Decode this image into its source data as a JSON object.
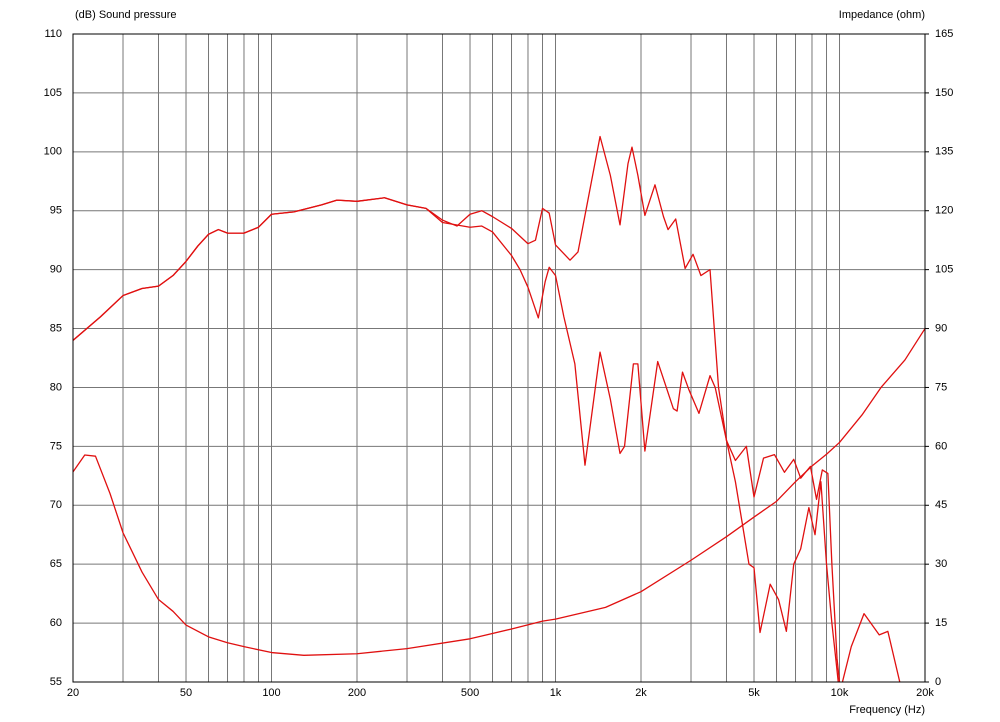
{
  "chart_data": {
    "type": "line",
    "y_label": "(dB)  Sound pressure",
    "y2_label": "Impedance  (ohm)",
    "x_label": "Frequency  (Hz)",
    "xscale": "log",
    "xlim": [
      20,
      20000
    ],
    "xticks": [
      20,
      50,
      100,
      200,
      500,
      {
        "value": 1000,
        "label": "1k"
      },
      {
        "value": 2000,
        "label": "2k"
      },
      {
        "value": 5000,
        "label": "5k"
      },
      {
        "value": 10000,
        "label": "10k"
      },
      {
        "value": 20000,
        "label": "20k"
      }
    ],
    "xminorticks": [
      30,
      40,
      60,
      70,
      80,
      90,
      300,
      400,
      600,
      700,
      800,
      900,
      3000,
      4000,
      6000,
      7000,
      8000,
      9000
    ],
    "ylim": [
      55,
      110
    ],
    "yticks": [
      55,
      60,
      65,
      70,
      75,
      80,
      85,
      90,
      95,
      100,
      105,
      110
    ],
    "y2lim": [
      0,
      165
    ],
    "y2ticks": [
      0,
      15,
      30,
      45,
      60,
      75,
      90,
      105,
      120,
      135,
      150,
      165
    ],
    "grid": true,
    "series": [
      {
        "color": "#e01010",
        "x": [
          20,
          25,
          30,
          35,
          40,
          45,
          50,
          55,
          60,
          65,
          70,
          80,
          90,
          100,
          120,
          150,
          170,
          200,
          250,
          300,
          350,
          400,
          450,
          500,
          550,
          600,
          700,
          800,
          850,
          900,
          950,
          1000,
          1125,
          1200,
          1435,
          1560,
          1687,
          1800,
          1859,
          1950,
          2064,
          2240,
          2400,
          2490,
          2650,
          2860,
          3050,
          3250,
          3500,
          3750,
          4000,
          4300,
          4700,
          5000,
          5400,
          5900,
          6400,
          6900,
          7300,
          7900,
          8300,
          8700,
          9100,
          9400,
          9800,
          10200
        ],
        "values": [
          84,
          86,
          87.8,
          88.4,
          88.6,
          89.5,
          90.7,
          92,
          93,
          93.4,
          93.1,
          93.1,
          93.6,
          94.7,
          94.9,
          95.5,
          95.9,
          95.8,
          96.1,
          95.5,
          95.2,
          94.2,
          93.7,
          94.7,
          95,
          94.5,
          93.5,
          92.2,
          92.5,
          95.2,
          94.8,
          92.1,
          90.8,
          91.5,
          101.3,
          98,
          93.8,
          99,
          100.4,
          98,
          94.6,
          97.2,
          94.5,
          93.4,
          94.3,
          90.1,
          91.3,
          89.5,
          90,
          80,
          75.5,
          73.8,
          75,
          70.7,
          74,
          74.3,
          72.8,
          73.9,
          72.3,
          73.3,
          70.5,
          73,
          72.7,
          65,
          57,
          53
        ]
      },
      {
        "color": "#e01010",
        "x": [
          20,
          25,
          30,
          35,
          40,
          45,
          50,
          55,
          60,
          65,
          70,
          80,
          90,
          100,
          120,
          150,
          170,
          200,
          250,
          300,
          350,
          400,
          500,
          550,
          600,
          700,
          750,
          800,
          870,
          920,
          950,
          1000,
          1070,
          1170,
          1270,
          1435,
          1560,
          1687,
          1750,
          1880,
          1950,
          2064,
          2290,
          2600,
          2680,
          2800,
          2950,
          3200,
          3500,
          3650,
          3960,
          4300,
          4800,
          5000,
          5250,
          5700,
          6100,
          6500,
          6900,
          7300,
          7800,
          8200,
          8600,
          9000,
          9400,
          9700,
          10000,
          11000,
          12200,
          13800,
          14800,
          16300
        ],
        "values": [
          84,
          86,
          87.8,
          88.4,
          88.6,
          89.5,
          90.7,
          92,
          93,
          93.4,
          93.1,
          93.1,
          93.6,
          94.7,
          94.9,
          95.5,
          95.9,
          95.8,
          96.1,
          95.5,
          95.2,
          94,
          93.6,
          93.7,
          93.2,
          91.2,
          90,
          88.5,
          85.9,
          89,
          90.2,
          89.5,
          86,
          82,
          73.4,
          83,
          79,
          74.4,
          75,
          82,
          82,
          74.6,
          82.2,
          78.2,
          78,
          81.3,
          79.8,
          77.8,
          81,
          80,
          76,
          72,
          65,
          64.7,
          59.2,
          63.3,
          62,
          59.3,
          65,
          66.3,
          69.8,
          67.5,
          72,
          65,
          60,
          57,
          54,
          58,
          60.8,
          59,
          59.3,
          55
        ]
      },
      {
        "color": "#e01010",
        "axis": "y2",
        "x": [
          20,
          22,
          24,
          27,
          30,
          35,
          40,
          45,
          50,
          60,
          70,
          80,
          100,
          130,
          200,
          300,
          500,
          700,
          900,
          1000,
          1500,
          2000,
          3000,
          4000,
          5000,
          6000,
          7000,
          8000,
          9000,
          10000,
          12000,
          14000,
          17000,
          20000
        ],
        "values": [
          53.5,
          57.8,
          57.5,
          48,
          38,
          28,
          21,
          18,
          14.5,
          11.5,
          10,
          9,
          7.5,
          6.8,
          7.2,
          8.5,
          11,
          13.5,
          15.5,
          16,
          19,
          23,
          31,
          37,
          42,
          46,
          51,
          55,
          58,
          61,
          68,
          75,
          82,
          90
        ]
      }
    ]
  }
}
